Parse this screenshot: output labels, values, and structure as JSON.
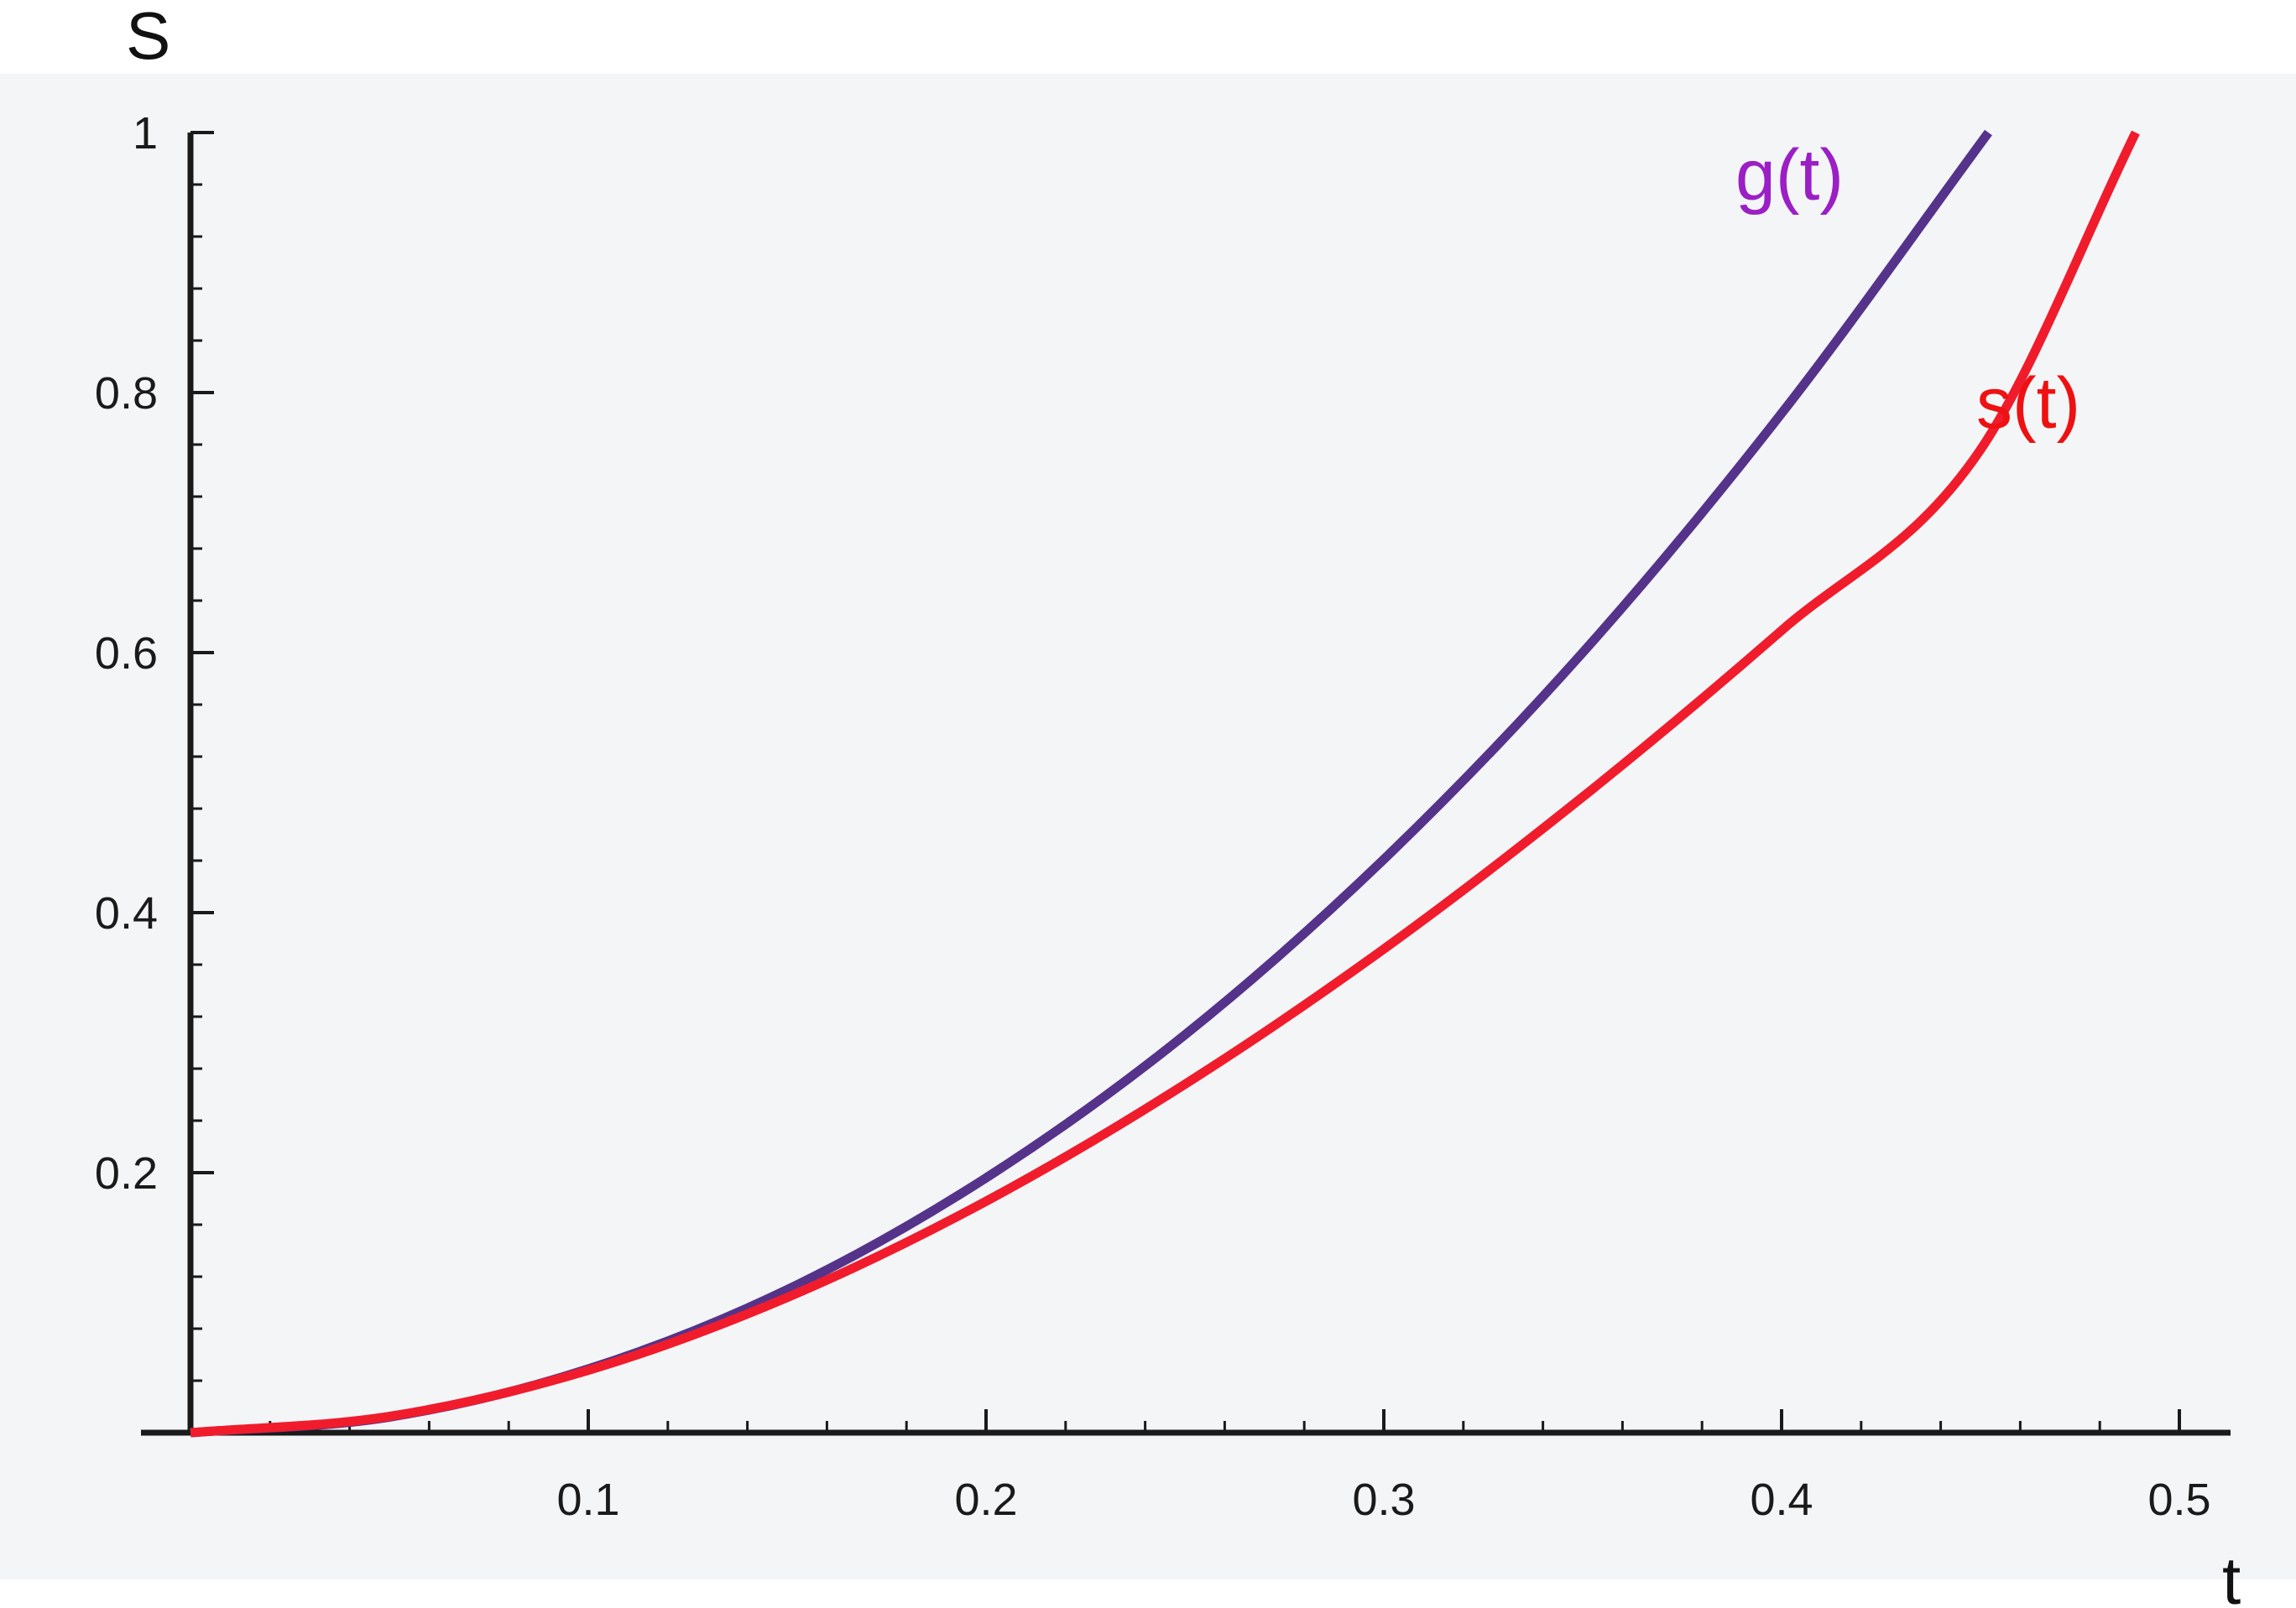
{
  "chart_data": {
    "type": "line",
    "xlabel": "t",
    "ylabel": "S",
    "xlim": [
      0,
      0.51
    ],
    "ylim": [
      0,
      1
    ],
    "x_ticks": [
      0.1,
      0.2,
      0.3,
      0.4,
      0.5
    ],
    "x_tick_labels": [
      "0.1",
      "0.2",
      "0.3",
      "0.4",
      "0.5"
    ],
    "y_ticks": [
      0.2,
      0.4,
      0.6,
      0.8,
      1
    ],
    "y_tick_labels": [
      "0.2",
      "0.4",
      "0.6",
      "0.8",
      "1"
    ],
    "grid": false,
    "legend": "inline labels at curve ends",
    "colors": {
      "background": "#f3f5f7",
      "axes": "#1a1a1a",
      "g": "#55338a",
      "s": "#f01c2c",
      "g_label": "#9b1fc4",
      "s_label": "#ee1111"
    },
    "series": [
      {
        "name": "g(t)",
        "color": "#55338a",
        "x": [
          0,
          0.05,
          0.1,
          0.15,
          0.2,
          0.25,
          0.3,
          0.35,
          0.4,
          0.452
        ],
        "y": [
          0,
          0.012,
          0.049,
          0.11,
          0.196,
          0.306,
          0.441,
          0.6,
          0.784,
          1.0
        ]
      },
      {
        "name": "s(t)",
        "color": "#f01c2c",
        "x": [
          0,
          0.05,
          0.1,
          0.15,
          0.2,
          0.25,
          0.3,
          0.35,
          0.4,
          0.45,
          0.489
        ],
        "y": [
          0,
          0.0125,
          0.048,
          0.104,
          0.178,
          0.268,
          0.372,
          0.489,
          0.617,
          0.756,
          1.0
        ]
      }
    ]
  }
}
